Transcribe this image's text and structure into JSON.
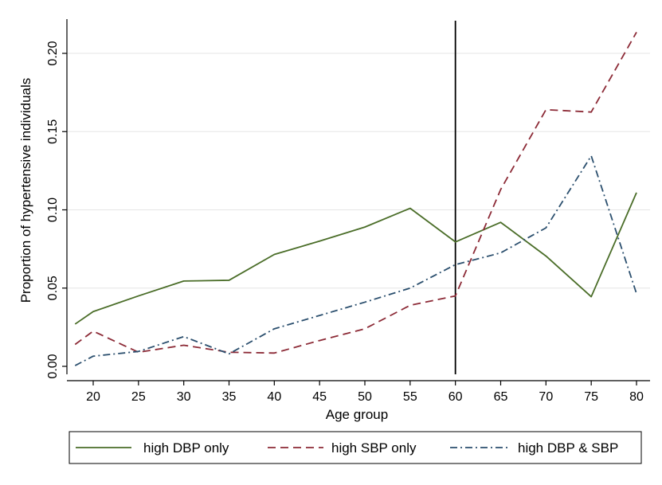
{
  "chart_data": {
    "type": "line",
    "xlabel": "Age group",
    "ylabel": "Proportion of hypertensive individuals",
    "xlim": [
      17,
      81
    ],
    "ylim": [
      0,
      0.22
    ],
    "x_ticks": [
      20,
      25,
      30,
      35,
      40,
      45,
      50,
      55,
      60,
      65,
      70,
      75,
      80
    ],
    "x_tick_labels": [
      "20",
      "25",
      "30",
      "35",
      "40",
      "45",
      "50",
      "55",
      "60",
      "65",
      "70",
      "75",
      "80"
    ],
    "y_ticks": [
      0,
      0.05,
      0.1,
      0.15,
      0.2
    ],
    "y_tick_labels": [
      "0.00",
      "0.05",
      "0.10",
      "0.15",
      "0.20"
    ],
    "grid": "horizontal",
    "reference_line_x": 60,
    "legend_position": "bottom",
    "x": [
      18,
      20,
      25,
      30,
      35,
      40,
      45,
      50,
      55,
      60,
      65,
      70,
      75,
      80
    ],
    "series": [
      {
        "name": "high DBP only",
        "color": "#4a6d28",
        "dash": "solid",
        "values": [
          0.027,
          0.035,
          0.045,
          0.0545,
          0.055,
          0.0715,
          0.08,
          0.089,
          0.101,
          0.0795,
          0.092,
          0.0705,
          0.0445,
          0.111
        ]
      },
      {
        "name": "high SBP only",
        "color": "#8c2a36",
        "dash": "long-dash",
        "values": [
          0.014,
          0.0225,
          0.009,
          0.0135,
          0.009,
          0.0085,
          0.0165,
          0.024,
          0.039,
          0.045,
          0.113,
          0.164,
          0.1625,
          0.2135
        ]
      },
      {
        "name": "high DBP & SBP",
        "color": "#2b4f6e",
        "dash": "dash-dot",
        "values": [
          0.0005,
          0.0065,
          0.0095,
          0.019,
          0.008,
          0.024,
          0.0325,
          0.041,
          0.05,
          0.065,
          0.0725,
          0.0885,
          0.1345,
          0.0465
        ]
      }
    ]
  }
}
